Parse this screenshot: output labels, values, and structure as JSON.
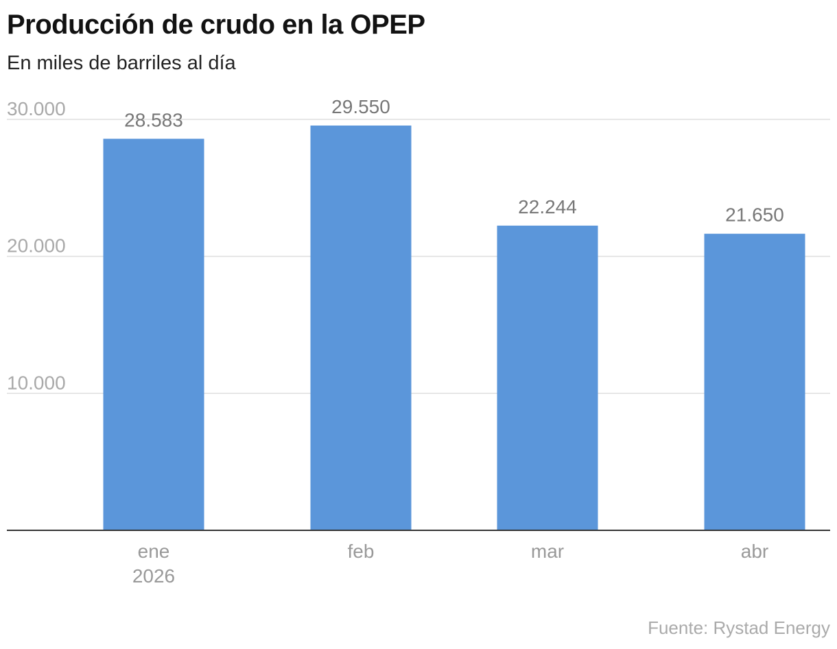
{
  "chart_data": {
    "type": "bar",
    "title": "Producción de crudo en la OPEP",
    "subtitle": "En miles de barriles al día",
    "categories": [
      "ene",
      "feb",
      "mar",
      "abr"
    ],
    "category_sublabels": [
      "2026",
      "",
      "",
      ""
    ],
    "values": [
      28583,
      29550,
      22244,
      21650
    ],
    "value_labels": [
      "28.583",
      "29.550",
      "22.244",
      "21.650"
    ],
    "ylim": [
      0,
      30000
    ],
    "yticks": [
      10000,
      20000,
      30000
    ],
    "ytick_labels": [
      "10.000",
      "20.000",
      "30.000"
    ],
    "grid": true,
    "legend": "none",
    "bar_color": "#5b96da",
    "source": "Fuente: Rystad Energy"
  }
}
